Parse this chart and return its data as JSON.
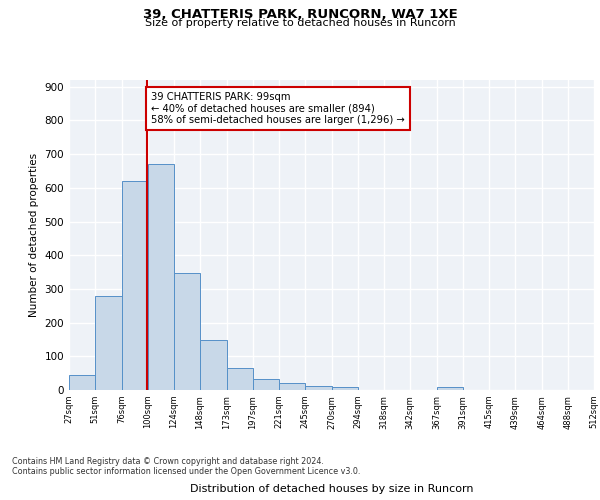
{
  "title1": "39, CHATTERIS PARK, RUNCORN, WA7 1XE",
  "title2": "Size of property relative to detached houses in Runcorn",
  "xlabel": "Distribution of detached houses by size in Runcorn",
  "ylabel": "Number of detached properties",
  "bar_edges": [
    27,
    51,
    76,
    100,
    124,
    148,
    173,
    197,
    221,
    245,
    270,
    294,
    318,
    342,
    367,
    391,
    415,
    439,
    464,
    488,
    512
  ],
  "bar_heights": [
    45,
    280,
    620,
    670,
    348,
    148,
    65,
    32,
    20,
    12,
    10,
    0,
    0,
    0,
    8,
    0,
    0,
    0,
    0,
    0
  ],
  "bar_color": "#c8d8e8",
  "bar_edge_color": "#5590c8",
  "property_size": 99,
  "vline_color": "#cc0000",
  "annotation_line1": "39 CHATTERIS PARK: 99sqm",
  "annotation_line2": "← 40% of detached houses are smaller (894)",
  "annotation_line3": "58% of semi-detached houses are larger (1,296) →",
  "annotation_box_color": "#ffffff",
  "annotation_box_edge_color": "#cc0000",
  "ylim": [
    0,
    920
  ],
  "yticks": [
    0,
    100,
    200,
    300,
    400,
    500,
    600,
    700,
    800,
    900
  ],
  "footer_line1": "Contains HM Land Registry data © Crown copyright and database right 2024.",
  "footer_line2": "Contains public sector information licensed under the Open Government Licence v3.0.",
  "background_color": "#eef2f7",
  "grid_color": "#ffffff",
  "fig_bg": "#ffffff"
}
